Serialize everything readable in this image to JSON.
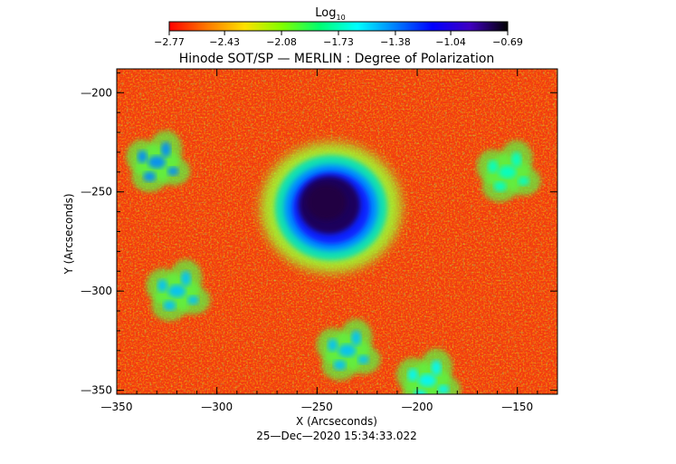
{
  "chart_data": {
    "type": "heatmap",
    "title": "Hinode SOT/SP — MERLIN : Degree of Polarization",
    "xlabel": "X (Arcseconds)",
    "ylabel": "Y (Arcseconds)",
    "timestamp": "25—Dec—2020 15:34:33.022",
    "xlim": [
      -350,
      -130
    ],
    "ylim": [
      -352,
      -188
    ],
    "x_ticks": [
      -350,
      -300,
      -250,
      -200,
      -150
    ],
    "x_tick_labels": [
      "—350",
      "—300",
      "—250",
      "—200",
      "—150"
    ],
    "y_ticks": [
      -200,
      -250,
      -300,
      -350
    ],
    "y_tick_labels": [
      "—200",
      "—250",
      "—300",
      "—350"
    ],
    "colorbar": {
      "label": "Log",
      "label_subscript": "10",
      "range": [
        -2.77,
        -0.69
      ],
      "ticks": [
        -2.77,
        -2.43,
        -2.08,
        -1.73,
        -1.38,
        -1.04,
        -0.69
      ],
      "tick_labels": [
        "−2.77",
        "−2.43",
        "−2.08",
        "−1.73",
        "−1.38",
        "−1.04",
        "−0.69"
      ],
      "colors": [
        "#ff0000",
        "#ff7800",
        "#ffe000",
        "#80ff00",
        "#00ff70",
        "#00ffff",
        "#0080ff",
        "#0000ff",
        "#4000c0",
        "#000000"
      ]
    },
    "features": [
      {
        "x": -243,
        "y": -258,
        "value": -0.8
      },
      {
        "x": -330,
        "y": -235,
        "value": -1.4
      },
      {
        "x": -320,
        "y": -300,
        "value": -1.5
      },
      {
        "x": -235,
        "y": -330,
        "value": -1.5
      },
      {
        "x": -195,
        "y": -345,
        "value": -1.6
      },
      {
        "x": -155,
        "y": -240,
        "value": -1.7
      }
    ]
  }
}
